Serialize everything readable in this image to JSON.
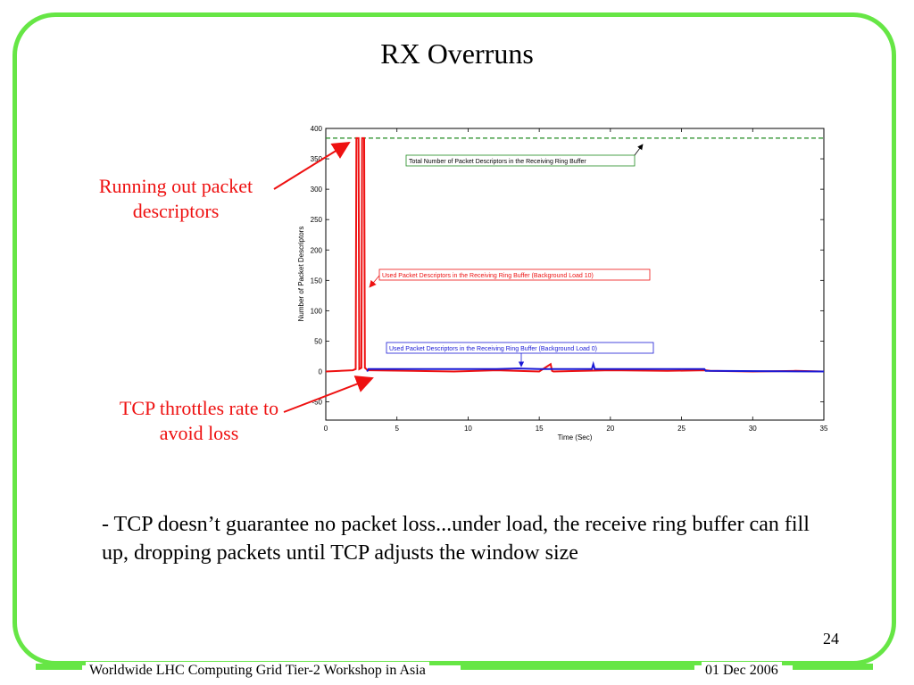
{
  "slide": {
    "title": "RX Overruns",
    "callout_top": "Running out packet descriptors",
    "callout_bottom": "TCP throttles rate to avoid loss",
    "bullet": "- TCP doesn’t guarantee no packet loss...under load, the receive ring buffer can fill up, dropping packets until TCP adjusts the window size",
    "page_number": "24",
    "footer_left": "Worldwide LHC Computing Grid Tier-2 Workshop in Asia",
    "footer_right": "01 Dec 2006"
  },
  "colors": {
    "frame": "#66e645",
    "callout": "#ee1111",
    "series_red": "#ee1111",
    "series_blue": "#1a1ad6",
    "total_line": "#1f8a1f"
  },
  "chart_data": {
    "type": "line",
    "xlabel": "Time (Sec)",
    "ylabel": "Number of Packet Descriptors",
    "xlim": [
      0,
      35
    ],
    "ylim": [
      -80,
      400
    ],
    "xticks": [
      0,
      5,
      10,
      15,
      20,
      25,
      30,
      35
    ],
    "yticks": [
      -50,
      0,
      50,
      100,
      150,
      200,
      250,
      300,
      350,
      400
    ],
    "grid": false,
    "total_descriptors": 384,
    "annotations": [
      {
        "text": "Total Number of Packet Descriptors in the Receiving Ring Buffer",
        "color": "#1f8a1f"
      },
      {
        "text": "Used Packet Descriptors in the Receiving Ring Buffer (Background Load 10)",
        "color": "#ee1111"
      },
      {
        "text": "Used Packet Descriptors in the Receiving Ring Buffer (Background Load 0)",
        "color": "#1a1ad6"
      }
    ],
    "series": [
      {
        "color": "#ee1111",
        "x": [
          0,
          1.9,
          2.1,
          2.15,
          2.3,
          2.35,
          2.5,
          2.55,
          2.7,
          2.75,
          2.9,
          3.0,
          6,
          9,
          12,
          15,
          15.8,
          15.9,
          16.0,
          20,
          24,
          26.7,
          27,
          30,
          33,
          35
        ],
        "y": [
          0,
          2,
          4,
          384,
          384,
          4,
          6,
          384,
          384,
          6,
          3,
          2,
          1,
          0,
          2,
          0,
          12,
          1,
          0,
          2,
          1,
          2,
          1,
          0,
          1,
          0
        ]
      },
      {
        "color": "#1a1ad6",
        "x": [
          2.9,
          3.0,
          6,
          9,
          12,
          13.5,
          15,
          18.7,
          18.8,
          18.9,
          21,
          24,
          26.6,
          26.7,
          35
        ],
        "y": [
          0,
          4,
          4,
          4,
          4,
          5,
          4,
          4,
          12,
          4,
          4,
          4,
          4,
          1,
          0
        ]
      }
    ]
  }
}
